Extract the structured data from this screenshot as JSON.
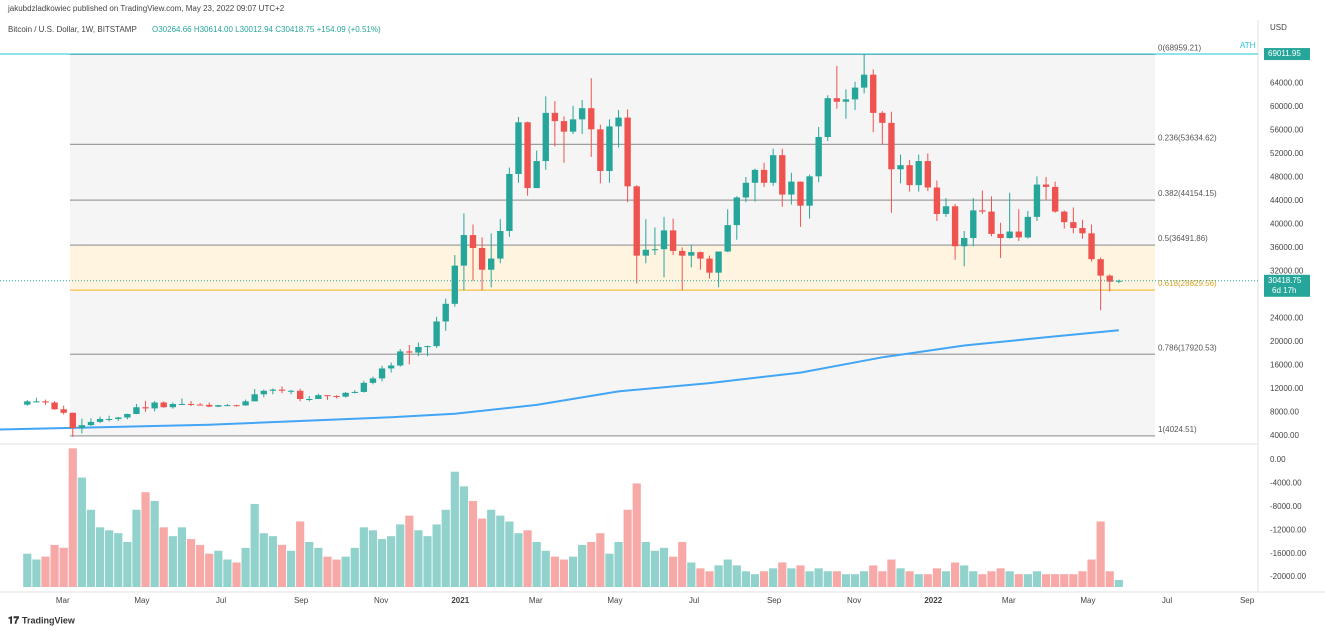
{
  "header": {
    "publisher": "jakubdzladkowiec published on TradingView.com, May 23, 2022 09:07 UTC+2",
    "symbol": "Bitcoin / U.S. Dollar, 1W, BITSTAMP",
    "ohlc_text": "O30264.66 H30614.00 L30012.94 C30418.75 +154.09 (+0.51%)"
  },
  "footer": {
    "brand": "TradingView"
  },
  "chart_data": {
    "type": "candlestick",
    "currency": "USD",
    "up_color": "#26a69a",
    "down_color": "#ef5350",
    "xlim": [
      -3,
      135.3
    ],
    "xticks": [
      {
        "value": 3.9,
        "label": "Mar"
      },
      {
        "value": 12.6,
        "label": "May"
      },
      {
        "value": 21.3,
        "label": "Jul"
      },
      {
        "value": 30.1,
        "label": "Sep"
      },
      {
        "value": 38.9,
        "label": "Nov"
      },
      {
        "value": 47.6,
        "label": "2021"
      },
      {
        "value": 55.9,
        "label": "Mar"
      },
      {
        "value": 64.6,
        "label": "May"
      },
      {
        "value": 73.3,
        "label": "Jul"
      },
      {
        "value": 82.1,
        "label": "Sep"
      },
      {
        "value": 90.9,
        "label": "Nov"
      },
      {
        "value": 99.6,
        "label": "2022"
      },
      {
        "value": 107.9,
        "label": "Mar"
      },
      {
        "value": 116.6,
        "label": "May"
      },
      {
        "value": 125.3,
        "label": "Jul"
      },
      {
        "value": 134.1,
        "label": "Sep"
      }
    ],
    "ylim": [
      2979,
      74809
    ],
    "yticks": [
      {
        "value": 4000,
        "label": "4000.00"
      },
      {
        "value": 8000,
        "label": "8000.00"
      },
      {
        "value": 12000,
        "label": "12000.00"
      },
      {
        "value": 16000,
        "label": "16000.00"
      },
      {
        "value": 20000,
        "label": "20000.00"
      },
      {
        "value": 24000,
        "label": "24000.00"
      },
      {
        "value": 32000,
        "label": "32000.00"
      },
      {
        "value": 36000,
        "label": "36000.00"
      },
      {
        "value": 40000,
        "label": "40000.00"
      },
      {
        "value": 44000,
        "label": "44000.00"
      },
      {
        "value": 48000,
        "label": "48000.00"
      },
      {
        "value": 52000,
        "label": "52000.00"
      },
      {
        "value": 56000,
        "label": "56000.00"
      },
      {
        "value": 60000,
        "label": "60000.00"
      },
      {
        "value": 64000,
        "label": "64000.00"
      }
    ],
    "ohlc": [
      [
        9330,
        10150,
        9150,
        9900
      ],
      [
        9900,
        10500,
        9700,
        9900
      ],
      [
        9900,
        10200,
        9300,
        9700
      ],
      [
        9700,
        9950,
        8450,
        8550
      ],
      [
        8550,
        9180,
        7650,
        7950
      ],
      [
        7950,
        8000,
        3850,
        5350
      ],
      [
        5350,
        6950,
        4450,
        5850
      ],
      [
        5850,
        7000,
        5700,
        6400
      ],
      [
        6400,
        7300,
        6200,
        6900
      ],
      [
        6900,
        7450,
        6480,
        6900
      ],
      [
        6900,
        7250,
        6550,
        7150
      ],
      [
        7150,
        7800,
        6850,
        7750
      ],
      [
        7750,
        9450,
        7700,
        8900
      ],
      [
        8900,
        10000,
        8100,
        8700
      ],
      [
        8700,
        9950,
        8200,
        9700
      ],
      [
        9700,
        9900,
        8800,
        8900
      ],
      [
        8900,
        9700,
        8650,
        9450
      ],
      [
        9450,
        10400,
        9300,
        9450
      ],
      [
        9450,
        9950,
        9100,
        9350
      ],
      [
        9350,
        9600,
        9200,
        9300
      ],
      [
        9300,
        9700,
        8900,
        9000
      ],
      [
        9000,
        9300,
        8900,
        9250
      ],
      [
        9250,
        9450,
        9100,
        9250
      ],
      [
        9250,
        9300,
        9000,
        9200
      ],
      [
        9200,
        10200,
        9150,
        9900
      ],
      [
        9900,
        12000,
        9900,
        11100
      ],
      [
        11100,
        11900,
        10600,
        11700
      ],
      [
        11700,
        12100,
        11100,
        11900
      ],
      [
        11900,
        12450,
        11300,
        11700
      ],
      [
        11700,
        11850,
        11100,
        11700
      ],
      [
        11700,
        12050,
        9900,
        10300
      ],
      [
        10300,
        10800,
        9900,
        10300
      ],
      [
        10300,
        11200,
        10300,
        10950
      ],
      [
        10950,
        10950,
        10150,
        10800
      ],
      [
        10800,
        10950,
        10400,
        10700
      ],
      [
        10700,
        11500,
        10550,
        11350
      ],
      [
        11350,
        11800,
        11250,
        11500
      ],
      [
        11500,
        13400,
        11400,
        13050
      ],
      [
        13050,
        14100,
        12800,
        13800
      ],
      [
        13800,
        15950,
        13300,
        15500
      ],
      [
        15500,
        16500,
        14800,
        16000
      ],
      [
        16000,
        18800,
        15800,
        18400
      ],
      [
        18400,
        19500,
        16200,
        18200
      ],
      [
        18200,
        19900,
        17600,
        19150
      ],
      [
        19150,
        19400,
        17600,
        19300
      ],
      [
        19300,
        24300,
        19000,
        23500
      ],
      [
        23500,
        27400,
        21900,
        26500
      ],
      [
        26500,
        34800,
        26000,
        33000
      ],
      [
        33000,
        41900,
        28800,
        38200
      ],
      [
        38200,
        40000,
        30400,
        36000
      ],
      [
        36000,
        37800,
        28800,
        32300
      ],
      [
        32300,
        38500,
        29300,
        34200
      ],
      [
        34200,
        40900,
        33400,
        38900
      ],
      [
        38900,
        49700,
        37900,
        48600
      ],
      [
        48600,
        58300,
        47100,
        57400
      ],
      [
        57400,
        57500,
        44900,
        46200
      ],
      [
        46200,
        52600,
        46200,
        50800
      ],
      [
        50800,
        61800,
        49300,
        59000
      ],
      [
        59000,
        61000,
        53300,
        57600
      ],
      [
        57600,
        58400,
        50500,
        55800
      ],
      [
        55800,
        60200,
        55400,
        57900
      ],
      [
        57900,
        61200,
        55400,
        59800
      ],
      [
        59800,
        64900,
        51500,
        56200
      ],
      [
        56200,
        57000,
        47000,
        49100
      ],
      [
        49100,
        57900,
        47100,
        56700
      ],
      [
        56700,
        59500,
        53100,
        58200
      ],
      [
        58200,
        59600,
        43800,
        46500
      ],
      [
        46500,
        46700,
        30000,
        34700
      ],
      [
        34700,
        40900,
        33400,
        35700
      ],
      [
        35700,
        39500,
        34800,
        35800
      ],
      [
        35800,
        41300,
        31000,
        39000
      ],
      [
        39000,
        41000,
        34800,
        35500
      ],
      [
        35500,
        36100,
        28800,
        34700
      ],
      [
        34700,
        36600,
        32700,
        35300
      ],
      [
        35300,
        35400,
        32300,
        34200
      ],
      [
        34200,
        34700,
        30800,
        31800
      ],
      [
        31800,
        35400,
        29300,
        35400
      ],
      [
        35400,
        42600,
        35300,
        39900
      ],
      [
        39900,
        44800,
        37400,
        44600
      ],
      [
        44600,
        48100,
        43800,
        47100
      ],
      [
        47100,
        49500,
        43900,
        49300
      ],
      [
        49300,
        50500,
        46400,
        47100
      ],
      [
        47100,
        52900,
        46600,
        51800
      ],
      [
        51800,
        52900,
        43000,
        45100
      ],
      [
        45100,
        48800,
        43400,
        47300
      ],
      [
        47300,
        47300,
        39600,
        43200
      ],
      [
        43200,
        48500,
        41000,
        48200
      ],
      [
        48200,
        56600,
        47200,
        54900
      ],
      [
        54900,
        62000,
        54200,
        61500
      ],
      [
        61500,
        67000,
        59700,
        60900
      ],
      [
        60900,
        63000,
        58000,
        61300
      ],
      [
        61300,
        64300,
        59500,
        63300
      ],
      [
        63300,
        69000,
        62300,
        65500
      ],
      [
        65500,
        66400,
        55700,
        59000
      ],
      [
        59000,
        59300,
        53600,
        57300
      ],
      [
        57300,
        59200,
        42000,
        49400
      ],
      [
        49400,
        51900,
        47000,
        50100
      ],
      [
        50100,
        51000,
        45600,
        46700
      ],
      [
        46700,
        51900,
        45600,
        50800
      ],
      [
        50800,
        52100,
        45700,
        46300
      ],
      [
        46300,
        47500,
        40600,
        41800
      ],
      [
        41800,
        44500,
        41300,
        43100
      ],
      [
        43100,
        43500,
        34000,
        36300
      ],
      [
        36300,
        38900,
        32900,
        37700
      ],
      [
        37700,
        44500,
        36300,
        42400
      ],
      [
        42400,
        45800,
        41800,
        42200
      ],
      [
        42200,
        44800,
        38000,
        38400
      ],
      [
        38400,
        40300,
        34300,
        37700
      ],
      [
        37700,
        45400,
        37600,
        38800
      ],
      [
        38800,
        42600,
        37200,
        37800
      ],
      [
        37800,
        42300,
        37600,
        41300
      ],
      [
        41300,
        48200,
        40600,
        46800
      ],
      [
        46800,
        48100,
        44200,
        46400
      ],
      [
        46400,
        47300,
        42000,
        42200
      ],
      [
        42200,
        42400,
        39300,
        40400
      ],
      [
        40400,
        42900,
        38500,
        39400
      ],
      [
        39400,
        40800,
        37600,
        38500
      ],
      [
        38500,
        40000,
        33700,
        34100
      ],
      [
        34100,
        34400,
        25400,
        31300
      ],
      [
        31300,
        31500,
        28600,
        30264
      ],
      [
        30264.66,
        30614,
        30012.94,
        30418.75
      ]
    ],
    "volume": {
      "y2lim": [
        -22200,
        2050
      ],
      "y2ticks": [
        {
          "value": 0,
          "label": "0.00"
        },
        {
          "value": -4000,
          "label": "-4000.00"
        },
        {
          "value": -8000,
          "label": "-8000.00"
        },
        {
          "value": -12000,
          "label": "-12000.00"
        },
        {
          "value": -16000,
          "label": "-16000.00"
        },
        {
          "value": -20000,
          "label": "-20000.00"
        }
      ],
      "values": [
        -16000,
        -17000,
        -16500,
        -14500,
        -15000,
        2000,
        -3000,
        -8500,
        -11500,
        -12000,
        -12500,
        -14000,
        -8500,
        -5500,
        -7000,
        -11500,
        -13000,
        -11500,
        -13500,
        -14500,
        -16000,
        -15500,
        -17000,
        -17500,
        -15000,
        -7500,
        -12500,
        -13000,
        -14500,
        -15500,
        -10500,
        -14000,
        -15000,
        -16500,
        -17000,
        -16500,
        -15000,
        -11500,
        -12000,
        -13500,
        -13000,
        -11000,
        -9500,
        -12000,
        -13000,
        -11000,
        -8500,
        -2000,
        -4500,
        -7000,
        -10000,
        -8500,
        -9500,
        -10500,
        -12500,
        -12000,
        -14000,
        -15500,
        -16500,
        -17000,
        -16500,
        -14500,
        -14000,
        -12500,
        -16000,
        -14000,
        -8500,
        -4000,
        -14000,
        -15500,
        -15000,
        -16500,
        -14000,
        -17500,
        -18500,
        -19000,
        -18000,
        -17000,
        -18000,
        -19000,
        -19500,
        -19000,
        -18500,
        -17500,
        -18500,
        -18000,
        -19000,
        -18500,
        -19000,
        -19000,
        -19500,
        -19500,
        -19000,
        -18000,
        -19000,
        -17000,
        -18500,
        -19000,
        -19500,
        -19500,
        -18500,
        -19000,
        -17500,
        -18000,
        -19000,
        -19500,
        -19000,
        -18500,
        -19000,
        -19500,
        -19500,
        -19000,
        -19500,
        -19500,
        -19500,
        -19500,
        -19000,
        -17000,
        -10500,
        -19000,
        -20500
      ]
    },
    "ma": {
      "color": "#42a5f5",
      "x": [
        -3,
        20,
        40,
        47,
        56,
        65,
        75,
        85,
        94,
        103,
        112,
        120
      ],
      "values": [
        5100,
        5900,
        7200,
        7800,
        9300,
        11600,
        13000,
        14800,
        17400,
        19400,
        20800,
        22000
      ]
    },
    "fib": {
      "band_color": "#f5f5f5",
      "zone_color": "#fff4e0",
      "levels": [
        {
          "value": 68959.21,
          "label": "0(68959.21)"
        },
        {
          "value": 53634.62,
          "label": "0.236(53634.62)"
        },
        {
          "value": 44154.15,
          "label": "0.382(44154.15)"
        },
        {
          "value": 36491.86,
          "label": "0.5(36491.86)"
        },
        {
          "value": 28829.56,
          "label": "0.618(28829.56)",
          "color": "#f5c24a"
        },
        {
          "value": 17920.53,
          "label": "0.786(17920.53)"
        },
        {
          "value": 4024.51,
          "label": "1(4024.51)"
        }
      ]
    },
    "ath": {
      "label": "ATH",
      "value": 69011.95,
      "color": "#26c6da"
    },
    "last": {
      "value": 30418.75,
      "countdown": "6d 17h"
    }
  }
}
